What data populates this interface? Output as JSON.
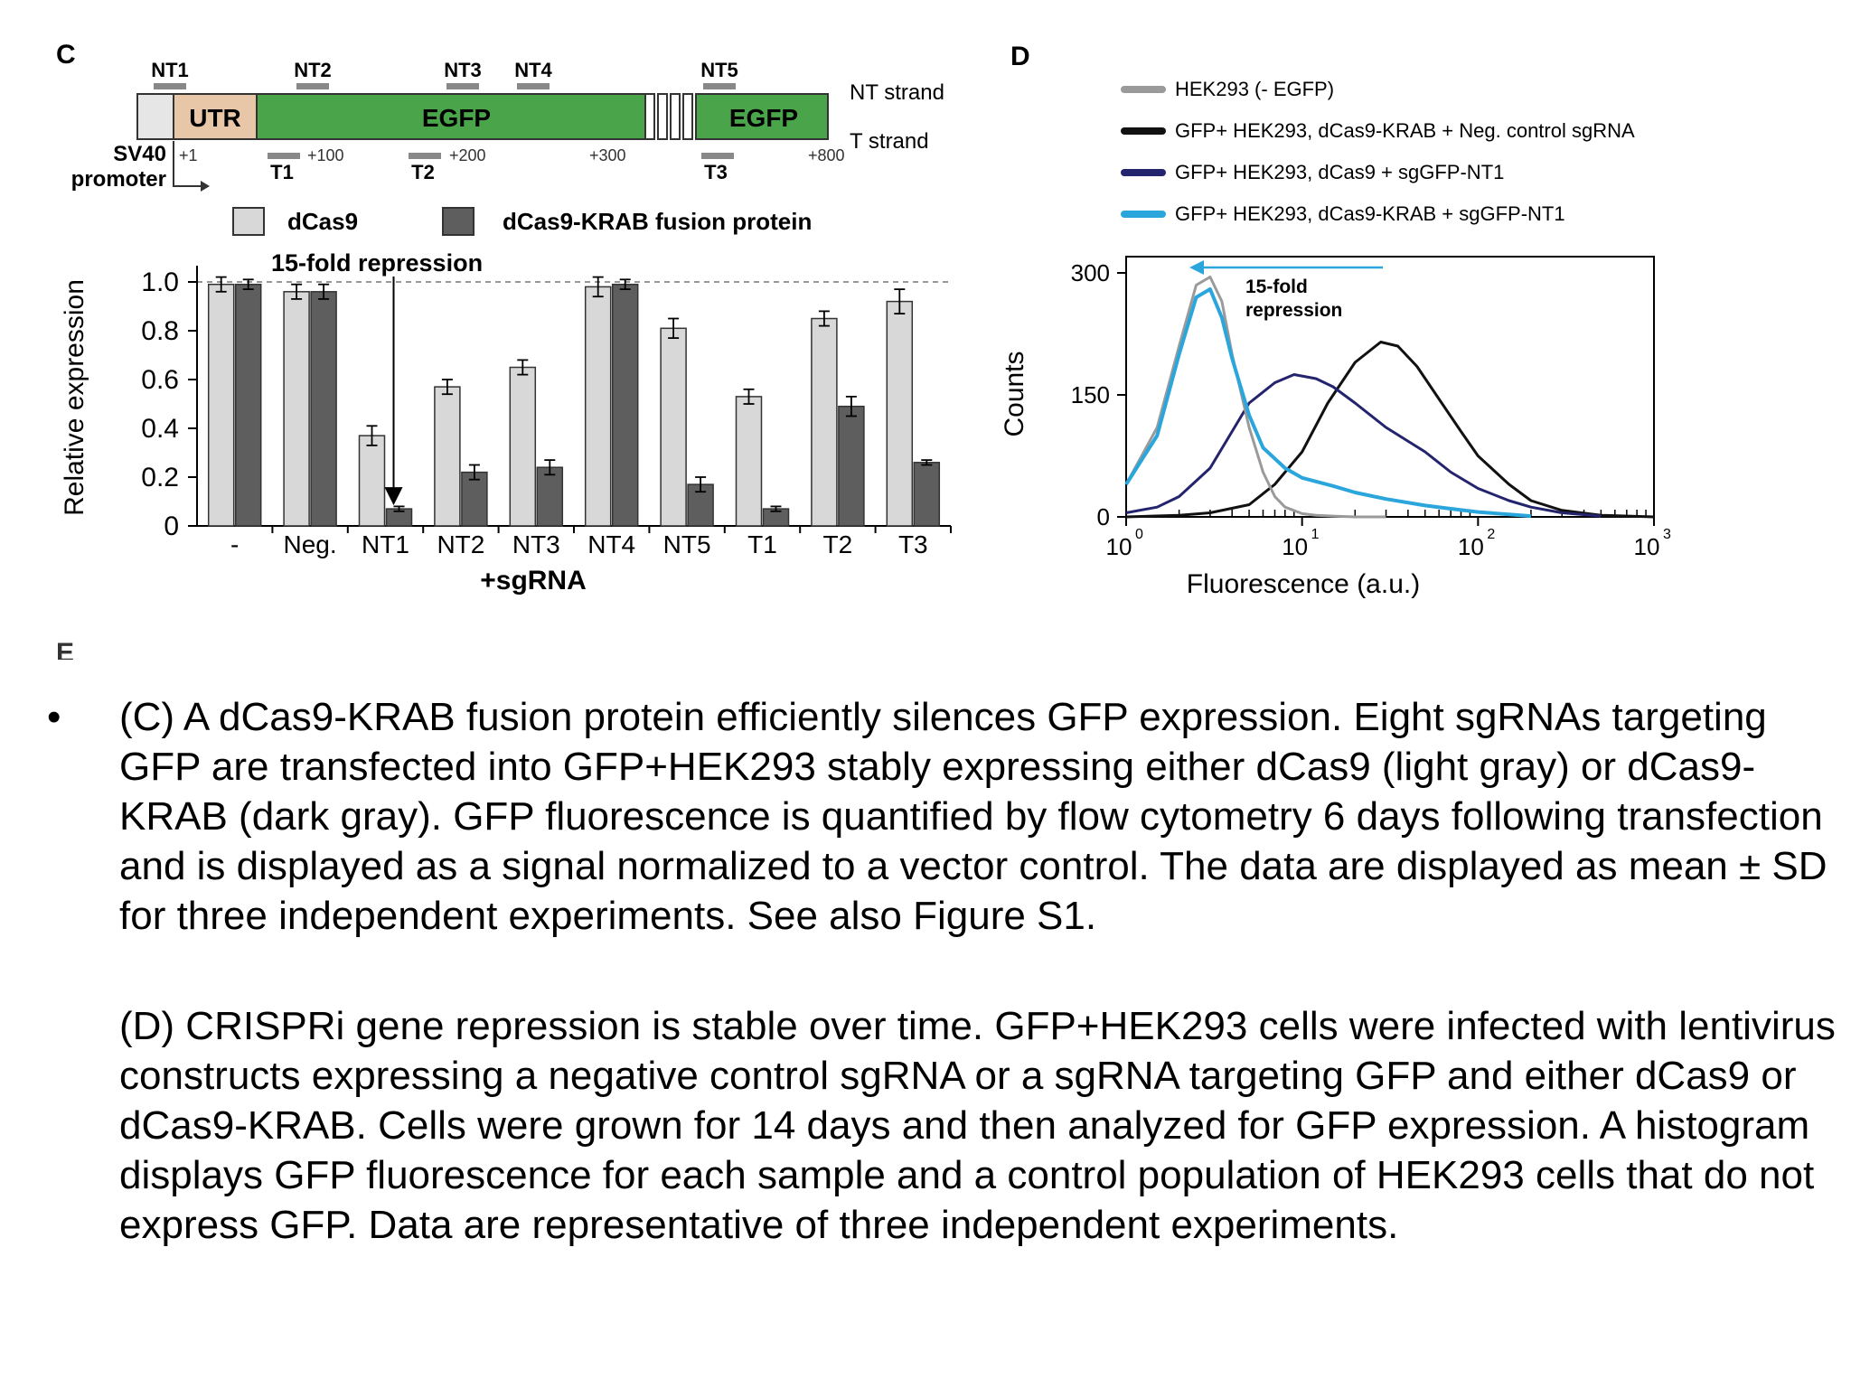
{
  "panel_c": {
    "letter": "C",
    "diagram": {
      "nt_labels": [
        "NT1",
        "NT2",
        "NT3",
        "NT4",
        "NT5"
      ],
      "t_labels": [
        "T1",
        "T2",
        "T3"
      ],
      "utr_label": "UTR",
      "egfp_label_1": "EGFP",
      "egfp_label_2": "EGFP",
      "nt_strand_label": "NT strand",
      "t_strand_label": "T strand",
      "sv40_label": "SV40",
      "promoter_label": "promoter",
      "positions": [
        "+1",
        "+100",
        "+200",
        "+300",
        "+800"
      ]
    },
    "legend": {
      "light": "dCas9",
      "dark": "dCas9-KRAB fusion protein"
    },
    "annotation": "15-fold repression",
    "colors": {
      "light_bar": "#d8d8d8",
      "dark_bar": "#5e5e5e",
      "utr": "#e8c7a8",
      "egfp": "#4aa54a"
    }
  },
  "panel_d": {
    "letter": "D",
    "legend": [
      "HEK293 (- EGFP)",
      "GFP+ HEK293, dCas9-KRAB + Neg. control sgRNA",
      "GFP+ HEK293, dCas9 + sgGFP-NT1",
      "GFP+ HEK293, dCas9-KRAB + sgGFP-NT1"
    ],
    "annotation_line1": "15-fold",
    "annotation_line2": "repression",
    "x_tick_base": "10",
    "colors": [
      "#9a9a9a",
      "#111111",
      "#24246e",
      "#2aa6dc"
    ]
  },
  "chart_data": [
    {
      "type": "bar",
      "categories": [
        "-",
        "Neg.",
        "NT1",
        "NT2",
        "NT3",
        "NT4",
        "NT5",
        "T1",
        "T2",
        "T3"
      ],
      "series": [
        {
          "name": "dCas9",
          "values": [
            0.99,
            0.96,
            0.37,
            0.57,
            0.65,
            0.98,
            0.81,
            0.53,
            0.85,
            0.92
          ],
          "errors": [
            0.03,
            0.03,
            0.04,
            0.03,
            0.03,
            0.04,
            0.04,
            0.03,
            0.03,
            0.05
          ]
        },
        {
          "name": "dCas9-KRAB fusion protein",
          "values": [
            0.99,
            0.96,
            0.07,
            0.22,
            0.24,
            0.99,
            0.17,
            0.07,
            0.49,
            0.26
          ],
          "errors": [
            0.02,
            0.03,
            0.01,
            0.03,
            0.03,
            0.02,
            0.03,
            0.01,
            0.04,
            0.01
          ]
        }
      ],
      "xlabel": "+sgRNA",
      "ylabel": "Relative expression",
      "ylim": [
        0,
        1.0
      ],
      "yticks": [
        0,
        0.2,
        0.4,
        0.6,
        0.8,
        1.0
      ],
      "ytick_labels": [
        "0",
        "0.2",
        "0.4",
        "0.6",
        "0.8",
        "1.0"
      ],
      "reference_line": 1.0
    },
    {
      "type": "line",
      "xscale": "log",
      "xlim": [
        1,
        1000
      ],
      "ylim": [
        0,
        300
      ],
      "xticks": [
        1,
        10,
        100,
        1000
      ],
      "xtick_exponents": [
        "0",
        "1",
        "2",
        "3"
      ],
      "yticks": [
        0,
        150,
        300
      ],
      "ytick_labels": [
        "0",
        "150",
        "300"
      ],
      "xlabel": "Fluorescence (a.u.)",
      "ylabel": "Counts",
      "series": [
        {
          "name": "HEK293 (- EGFP)",
          "x": [
            1,
            1.5,
            2,
            2.5,
            3,
            3.5,
            4,
            5,
            6,
            7,
            8,
            10,
            12,
            15,
            20,
            30
          ],
          "y": [
            40,
            110,
            210,
            285,
            295,
            265,
            200,
            110,
            55,
            25,
            12,
            4,
            2,
            1,
            0,
            0
          ]
        },
        {
          "name": "GFP+ HEK293, dCas9-KRAB + Neg. control sgRNA",
          "x": [
            1,
            2,
            3,
            5,
            7,
            10,
            14,
            20,
            28,
            35,
            45,
            60,
            80,
            100,
            150,
            200,
            300,
            500,
            1000
          ],
          "y": [
            0,
            2,
            5,
            15,
            40,
            80,
            140,
            190,
            215,
            210,
            185,
            145,
            105,
            75,
            40,
            20,
            8,
            2,
            0
          ]
        },
        {
          "name": "GFP+ HEK293, dCas9 + sgGFP-NT1",
          "x": [
            1,
            1.5,
            2,
            3,
            4,
            5,
            7,
            9,
            12,
            15,
            20,
            30,
            50,
            70,
            100,
            150,
            200,
            300,
            500
          ],
          "y": [
            5,
            12,
            25,
            60,
            105,
            140,
            165,
            175,
            170,
            160,
            140,
            110,
            80,
            55,
            35,
            20,
            12,
            5,
            1
          ]
        },
        {
          "name": "GFP+ HEK293, dCas9-KRAB + sgGFP-NT1",
          "x": [
            1,
            1.5,
            2,
            2.5,
            3,
            3.5,
            4,
            5,
            6,
            8,
            10,
            15,
            20,
            30,
            50,
            70,
            100,
            150,
            200
          ],
          "y": [
            40,
            100,
            200,
            270,
            280,
            245,
            195,
            125,
            85,
            60,
            48,
            38,
            30,
            22,
            14,
            10,
            6,
            3,
            1
          ]
        }
      ]
    }
  ],
  "fragment_letter": "E",
  "caption": {
    "bullet": "•",
    "p1": "(C) A dCas9-KRAB fusion protein efficiently silences GFP expression. Eight sgRNAs targeting GFP are transfected into GFP+HEK293 stably expressing either dCas9 (light gray) or dCas9-KRAB (dark gray). GFP fluorescence is quantified by flow cytometry 6 days following transfection and is displayed as a signal normalized to a vector control. The data are displayed as mean ± SD for three independent experiments. See also Figure S1.",
    "p2": "(D) CRISPRi gene repression is stable over time. GFP+HEK293 cells were infected with lentivirus constructs expressing a negative control sgRNA or a sgRNA targeting GFP and either dCas9 or dCas9-KRAB. Cells were grown for 14 days and then analyzed for GFP expression. A histogram displays GFP fluorescence for each sample and a control population of HEK293 cells that do not express GFP. Data are representative of three independent experiments."
  }
}
